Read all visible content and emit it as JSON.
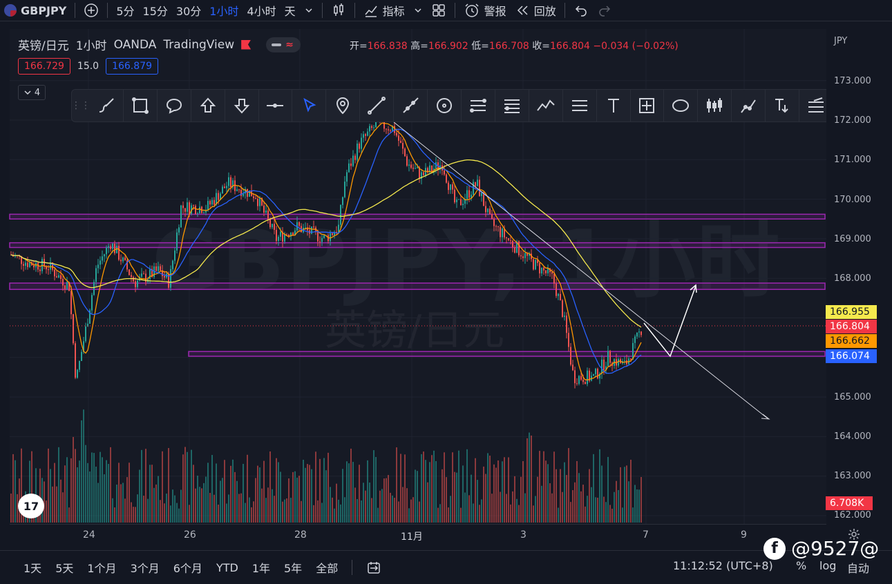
{
  "topbar": {
    "symbol": "GBPJPY",
    "timeframes": [
      "5分",
      "15分",
      "30分",
      "1小时",
      "4小时",
      "天"
    ],
    "active_timeframe": "1小时",
    "indicators_label": "指标",
    "alert_label": "警报",
    "replay_label": "回放"
  },
  "legend": {
    "description": "英镑/日元",
    "interval": "1小时",
    "exchange": "OANDA",
    "source": "TradingView",
    "open_label": "开=",
    "open": "166.838",
    "high_label": "高=",
    "high": "166.902",
    "low_label": "低=",
    "low": "166.708",
    "close_label": "收=",
    "close": "166.804",
    "change": "−0.034 (−0.02%)",
    "bid": "166.729",
    "spread": "15.0",
    "ask": "166.879",
    "collapsed_count": "4"
  },
  "watermark": {
    "symbol_line": "GBPJPY, 1小时",
    "description_line": "英镑/日元"
  },
  "price_axis": {
    "currency": "JPY",
    "ticks": [
      "173.000",
      "172.000",
      "171.000",
      "170.000",
      "169.000",
      "168.000",
      "165.000",
      "164.000",
      "163.000",
      "162.000"
    ],
    "tags": [
      {
        "label": "166.955",
        "color": "#f5e94d",
        "text_color": "#131722"
      },
      {
        "label": "166.804",
        "color": "#f23645",
        "text_color": "#ffffff"
      },
      {
        "label": "166.662",
        "color": "#ff9800",
        "text_color": "#131722"
      },
      {
        "label": "166.074",
        "color": "#2962ff",
        "text_color": "#ffffff"
      }
    ],
    "volume_tag": "6.708K"
  },
  "time_axis": {
    "labels": [
      "24",
      "26",
      "28",
      "11月",
      "3",
      "7",
      "9"
    ]
  },
  "bottombar": {
    "ranges": [
      "1天",
      "5天",
      "1个月",
      "3个月",
      "6个月",
      "YTD",
      "1年",
      "5年",
      "全部"
    ],
    "clock": "11:12:52 (UTC+8)",
    "percent": "%",
    "log": "log",
    "auto": "自动"
  },
  "brand_watermark": "@9527@",
  "colors": {
    "up": "#26a69a",
    "down": "#ef5350",
    "ma_fast": "#ff9800",
    "ma_mid": "#2962ff",
    "ma_slow": "#f5e94d",
    "zone": "#9c27b0"
  },
  "drawing_tools": [
    "brush-icon",
    "rectangle-icon",
    "callout-icon",
    "arrow-up-icon",
    "arrow-down-icon",
    "horizontal-line-icon",
    "cursor-icon",
    "pin-icon",
    "trend-line-icon",
    "ray-icon",
    "circle-icon",
    "fib-icon",
    "fib-extension-icon",
    "pattern-icon",
    "parallel-channel-icon",
    "text-icon",
    "measure-icon",
    "ellipse-icon",
    "long-short-icon",
    "path-icon",
    "price-label-icon",
    "settings-lines-icon"
  ]
}
